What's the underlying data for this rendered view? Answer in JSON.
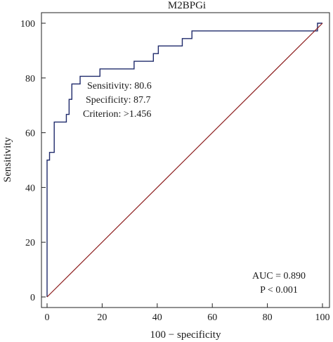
{
  "chart_data": {
    "type": "line",
    "title": "M2BPGi",
    "xlabel": "100 − specificity",
    "ylabel": "Sensitivity",
    "xlim": [
      0,
      100
    ],
    "ylim": [
      0,
      100
    ],
    "xticks": [
      "0",
      "20",
      "40",
      "60",
      "80",
      "100"
    ],
    "yticks": [
      "0",
      "20",
      "40",
      "60",
      "80",
      "100"
    ],
    "grid": false,
    "series": [
      {
        "color": "#1f2a6b",
        "x": [
          0,
          0,
          0.9,
          0.9,
          2.6,
          2.6,
          2.9,
          2.9,
          7.0,
          7.0,
          8.0,
          8.0,
          9.0,
          9.0,
          12.0,
          12.0,
          19.2,
          19.2,
          31.6,
          31.6,
          38.6,
          38.6,
          40.4,
          40.4,
          49.1,
          49.1,
          52.6,
          52.6,
          98.2,
          98.2,
          100
        ],
        "y": [
          0,
          50.0,
          50.0,
          52.8,
          52.8,
          63.9,
          63.9,
          63.9,
          63.9,
          66.7,
          66.7,
          72.2,
          72.2,
          77.8,
          77.8,
          80.6,
          80.6,
          83.3,
          83.3,
          86.1,
          86.1,
          88.9,
          88.9,
          91.7,
          91.7,
          94.4,
          94.4,
          97.2,
          97.2,
          100,
          100
        ]
      },
      {
        "color": "#8b1a1a",
        "x": [
          0,
          100
        ],
        "y": [
          0,
          100
        ]
      }
    ],
    "annotations": {
      "sensitivity": "Sensitivity: 80.6",
      "specificity": "Specificity: 87.7",
      "criterion": "Criterion: >1.456",
      "auc": "AUC = 0.890",
      "p": "P < 0.001"
    }
  }
}
